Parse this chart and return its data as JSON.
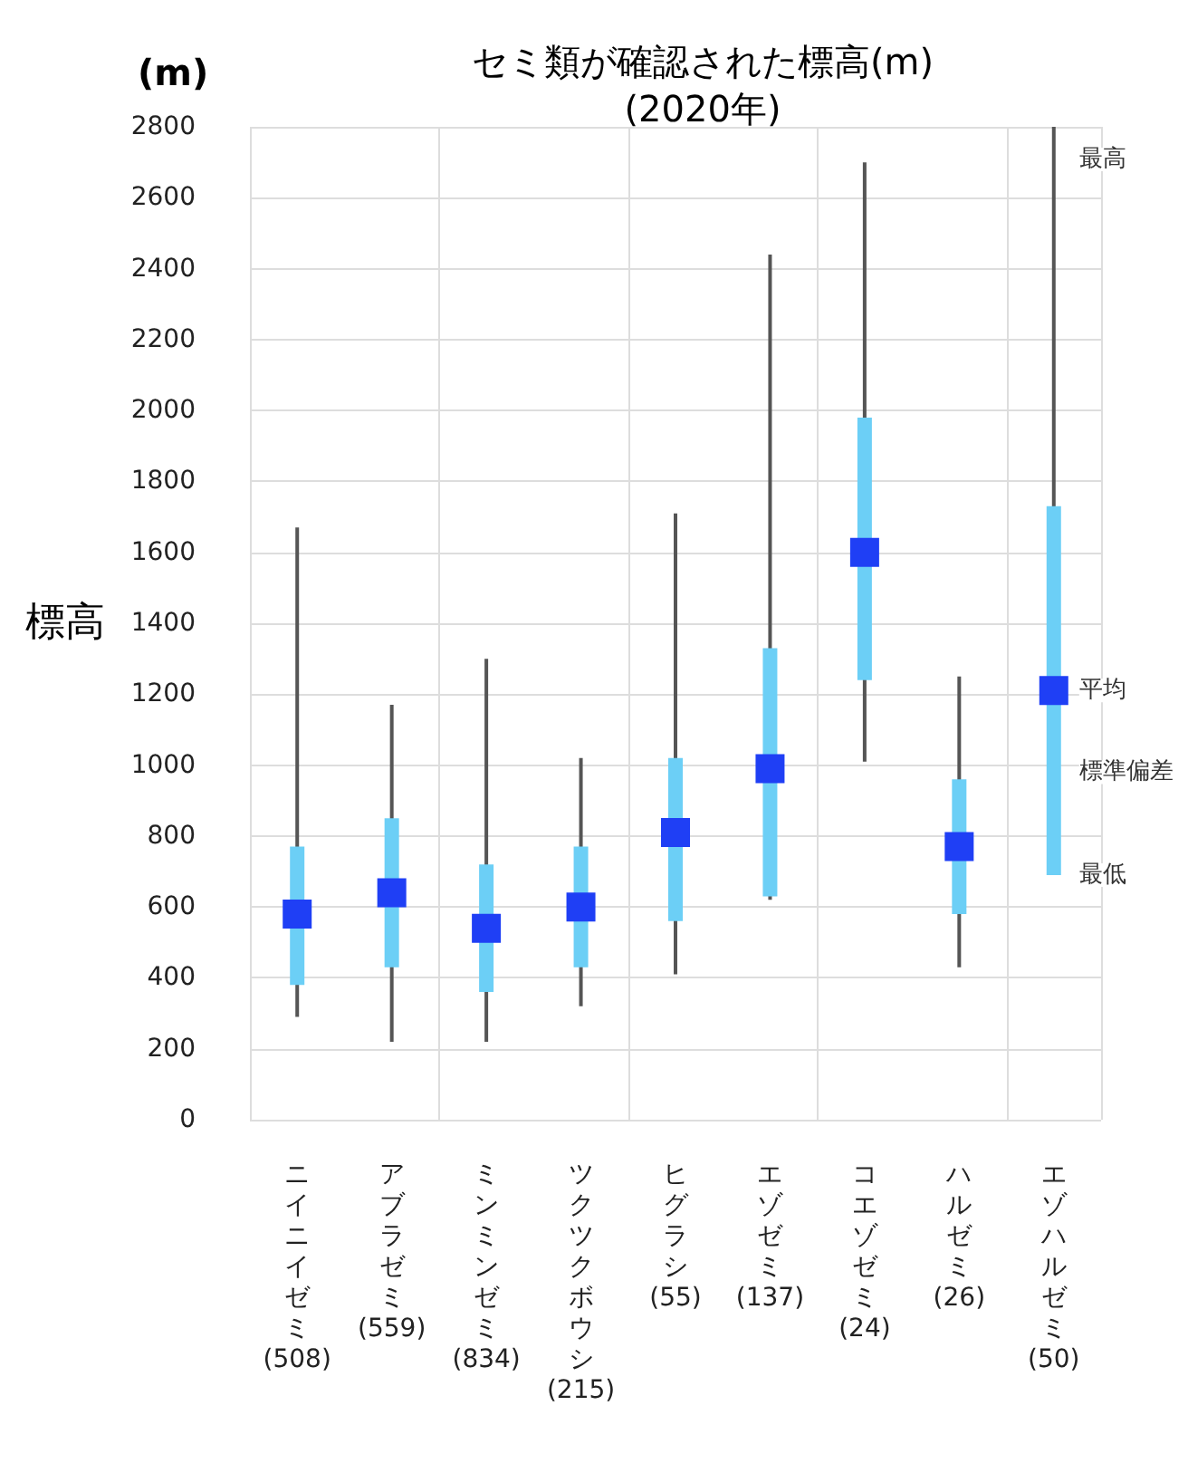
{
  "chart_data": {
    "type": "box",
    "title": "セミ類が確認された標高(m)\n(2020年)",
    "ylabel": "標高",
    "categories": [
      "ニイニイゼミ\n(508)",
      "アブラゼミ\n(559)",
      "ミンミンゼミ\n(834)",
      "ツクツクボウシ\n(215)",
      "ヒグラシ\n(55)",
      "エゾゼミ\n(137)",
      "コエゾゼミ\n(24)",
      "ハルゼミ\n(26)",
      "エゾハルゼミ\n(50)"
    ],
    "series": [
      {
        "color": "#6ccff6",
        "boxes": [
          {
            "low": 290,
            "q1": 380,
            "median": 580,
            "q3": 770,
            "high": 1670
          },
          {
            "low": 220,
            "q1": 430,
            "median": 640,
            "q3": 850,
            "high": 1170
          },
          {
            "low": 220,
            "q1": 360,
            "median": 540,
            "q3": 720,
            "high": 1300
          },
          {
            "low": 320,
            "q1": 430,
            "median": 600,
            "q3": 770,
            "high": 1020
          },
          {
            "low": 410,
            "q1": 560,
            "median": 810,
            "q3": 1020,
            "high": 1710
          },
          {
            "low": 620,
            "q1": 630,
            "median": 990,
            "q3": 1330,
            "high": 2440
          },
          {
            "low": 1010,
            "q1": 1240,
            "median": 1600,
            "q3": 1980,
            "high": 2700
          },
          {
            "low": 430,
            "q1": 580,
            "median": 770,
            "q3": 960,
            "high": 1250
          },
          {
            "low": 690,
            "q1": 690,
            "median": 1210,
            "q3": 1730,
            "high": 2800
          }
        ]
      }
    ],
    "ylim": [
      0,
      2800
    ],
    "yticks": [
      0,
      200,
      400,
      600,
      800,
      1000,
      1200,
      1400,
      1600,
      1800,
      2000,
      2200,
      2400,
      2600,
      2800
    ],
    "grid": true,
    "annotations": [
      "(m)",
      {
        "text": "最高",
        "x": "エゾハルゼミ\n(50)",
        "y": 2800
      },
      {
        "text": "平均",
        "x": "エゾハルゼミ\n(50)",
        "y": 1210
      },
      {
        "text": "標準偏差",
        "x": "エゾハルゼミ\n(50)",
        "y": 980
      },
      {
        "text": "最低",
        "x": "エゾハルゼミ\n(50)",
        "y": 690
      }
    ]
  }
}
